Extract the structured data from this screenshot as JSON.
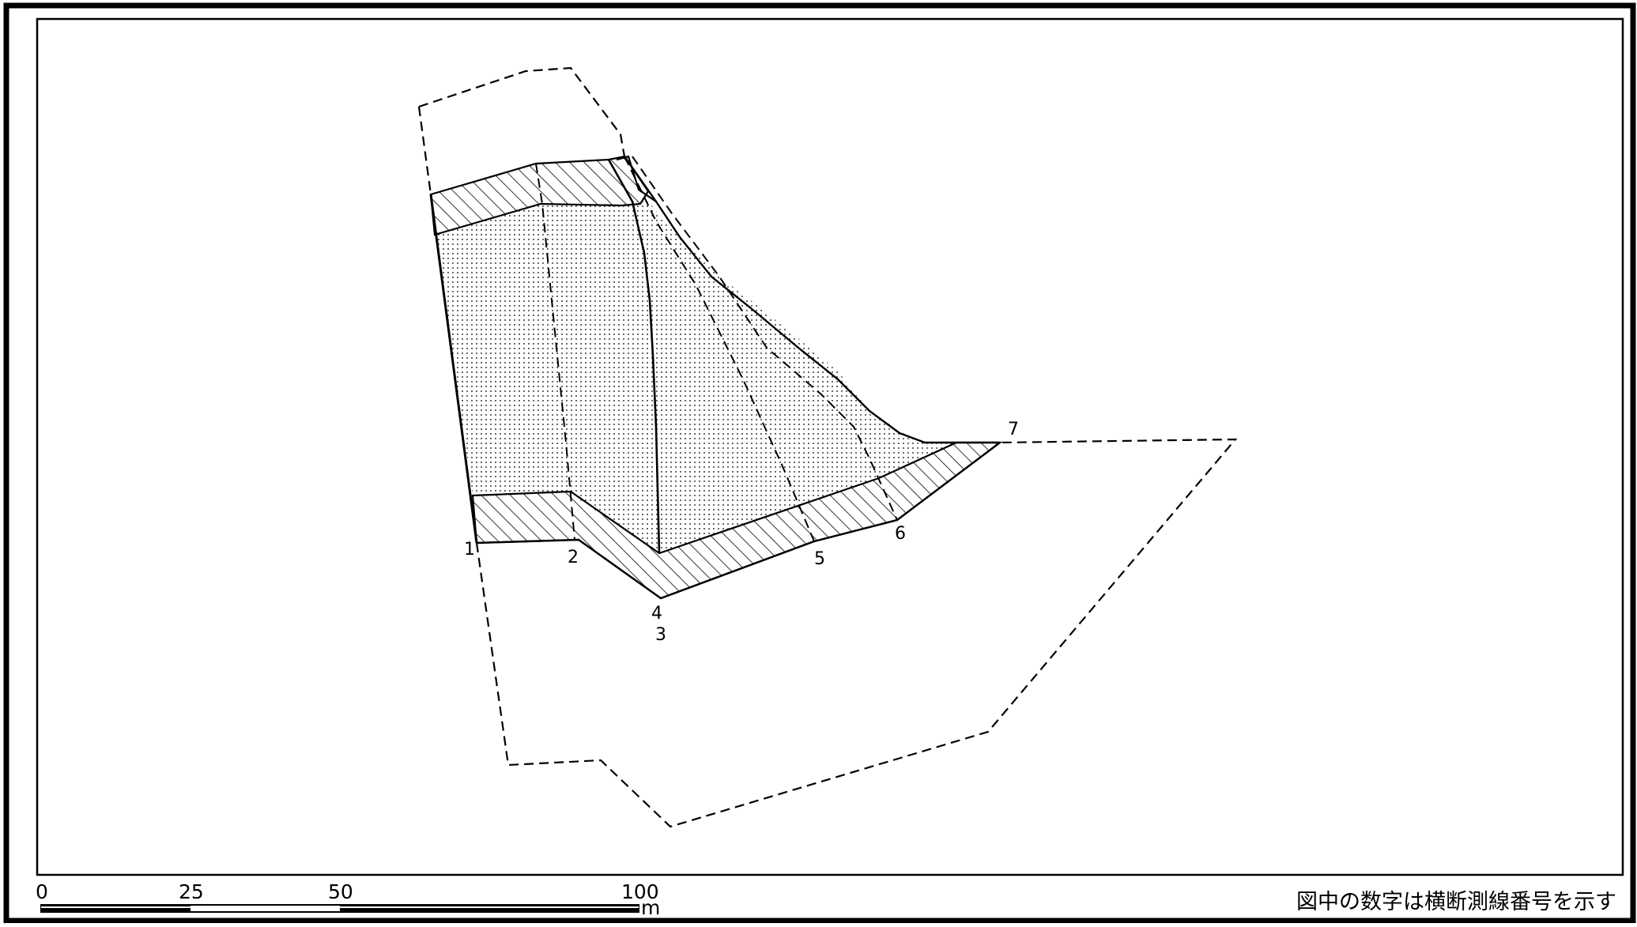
{
  "map": {
    "section_labels": [
      "1",
      "2",
      "4",
      "3",
      "5",
      "6",
      "7"
    ],
    "scale_bar": {
      "ticks": [
        "0",
        "25",
        "50",
        "100"
      ],
      "unit": "m"
    },
    "note": "図中の数字は横断測線番号を示す"
  }
}
